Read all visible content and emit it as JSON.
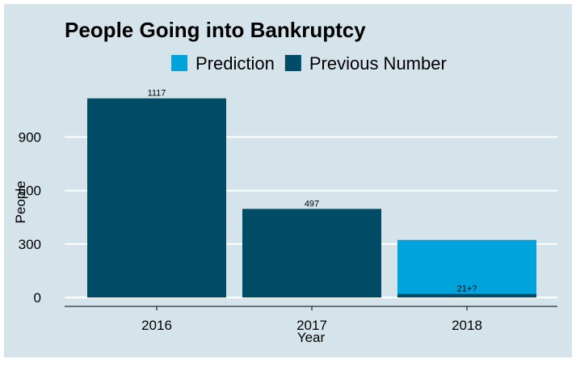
{
  "chart_data": {
    "type": "bar",
    "stacked": true,
    "title": "People Going into Bankruptcy",
    "xlabel": "Year",
    "ylabel": "People",
    "categories": [
      "2016",
      "2017",
      "2018"
    ],
    "ylim": [
      0,
      1170
    ],
    "yticks": [
      0,
      300,
      600,
      900
    ],
    "grid": "horizontal",
    "legend_position": "top",
    "series": [
      {
        "name": "Previous Number",
        "color": "#004c66",
        "values": [
          1117,
          497,
          21
        ]
      },
      {
        "name": "Prediction",
        "color": "#00a3dc",
        "values": [
          0,
          0,
          302
        ]
      }
    ],
    "legend": [
      {
        "name": "Prediction",
        "color": "#00a3dc"
      },
      {
        "name": "Previous Number",
        "color": "#004c66"
      }
    ],
    "data_labels": [
      "1117",
      "497",
      "21+?"
    ],
    "colors": {
      "background": "#d5e4eb",
      "gridline": "#ffffff",
      "axis": "#000000"
    }
  }
}
